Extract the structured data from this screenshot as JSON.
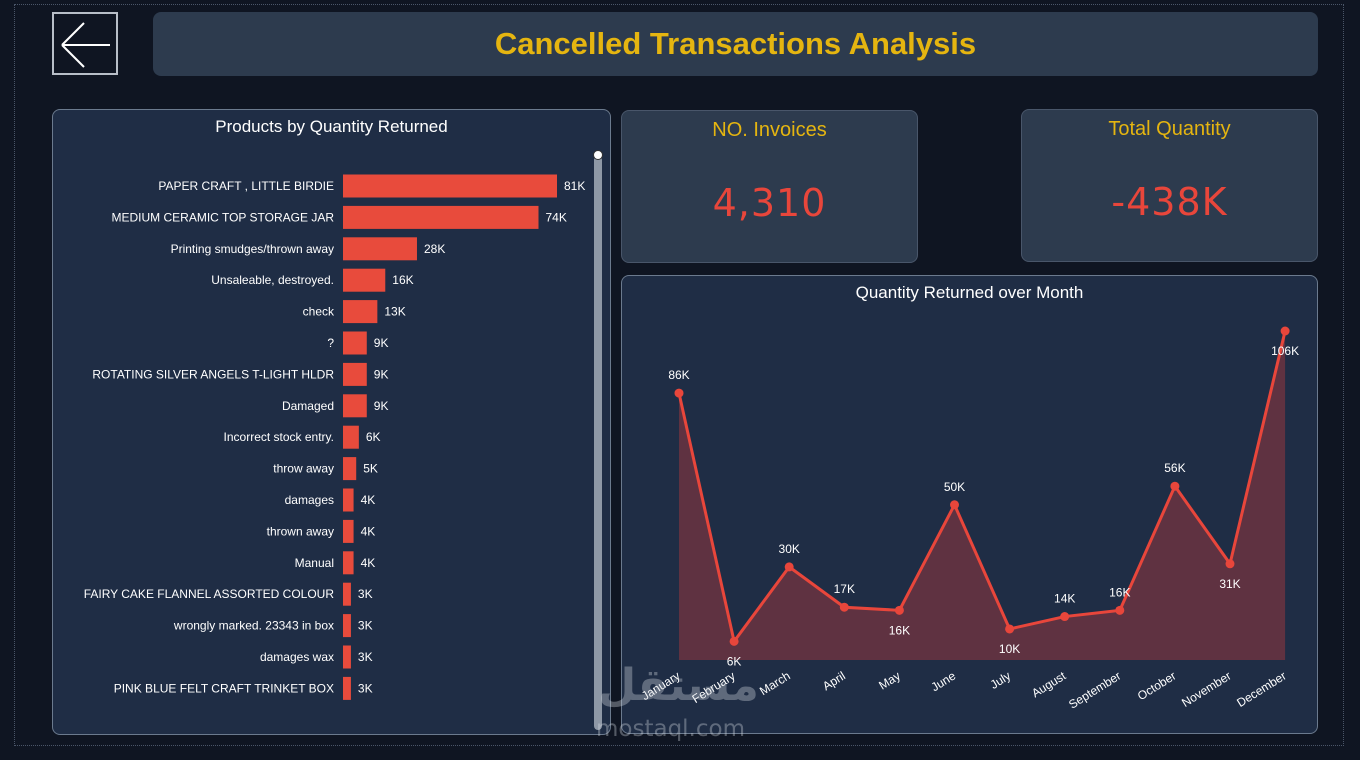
{
  "header": {
    "title": "Cancelled Transactions Analysis",
    "back_icon": "arrow-left-icon"
  },
  "kpis": {
    "invoices_label": "NO. Invoices",
    "invoices_value": "4,310",
    "quantity_label": "Total Quantity",
    "quantity_value": "-438K"
  },
  "colors": {
    "accent": "#e5b510",
    "bar": "#e84b3c",
    "line": "#e8463b",
    "area": "#6b3441",
    "panel": "#1f2d45",
    "card": "#2d3b4e"
  },
  "watermark": {
    "logo": "مستقل",
    "text": "mostaql.com"
  },
  "chart_data": [
    {
      "type": "bar",
      "orientation": "horizontal",
      "title": "Products by Quantity Returned",
      "categories": [
        "PAPER CRAFT , LITTLE BIRDIE",
        "MEDIUM CERAMIC TOP STORAGE JAR",
        "Printing smudges/thrown away",
        "Unsaleable, destroyed.",
        "check",
        "?",
        "ROTATING SILVER ANGELS T-LIGHT HLDR",
        "Damaged",
        "Incorrect stock entry.",
        "throw away",
        "damages",
        "thrown away",
        "Manual",
        "FAIRY CAKE FLANNEL ASSORTED COLOUR",
        "wrongly marked. 23343 in box",
        "damages wax",
        "PINK BLUE FELT CRAFT TRINKET BOX"
      ],
      "values": [
        81000,
        74000,
        28000,
        16000,
        13000,
        9000,
        9000,
        9000,
        6000,
        5000,
        4000,
        4000,
        4000,
        3000,
        3000,
        3000,
        3000
      ],
      "value_labels": [
        "81K",
        "74K",
        "28K",
        "16K",
        "13K",
        "9K",
        "9K",
        "9K",
        "6K",
        "5K",
        "4K",
        "4K",
        "4K",
        "3K",
        "3K",
        "3K",
        "3K"
      ],
      "xlim": [
        0,
        81000
      ]
    },
    {
      "type": "area",
      "title": "Quantity Returned over Month",
      "x": [
        "January",
        "February",
        "March",
        "April",
        "May",
        "June",
        "July",
        "August",
        "September",
        "October",
        "November",
        "December"
      ],
      "values": [
        86000,
        6000,
        30000,
        17000,
        16000,
        50000,
        10000,
        14000,
        16000,
        56000,
        31000,
        106000
      ],
      "value_labels": [
        "86K",
        "6K",
        "30K",
        "17K",
        "16K",
        "50K",
        "10K",
        "14K",
        "16K",
        "56K",
        "31K",
        "106K"
      ],
      "ylim": [
        0,
        106000
      ]
    }
  ]
}
